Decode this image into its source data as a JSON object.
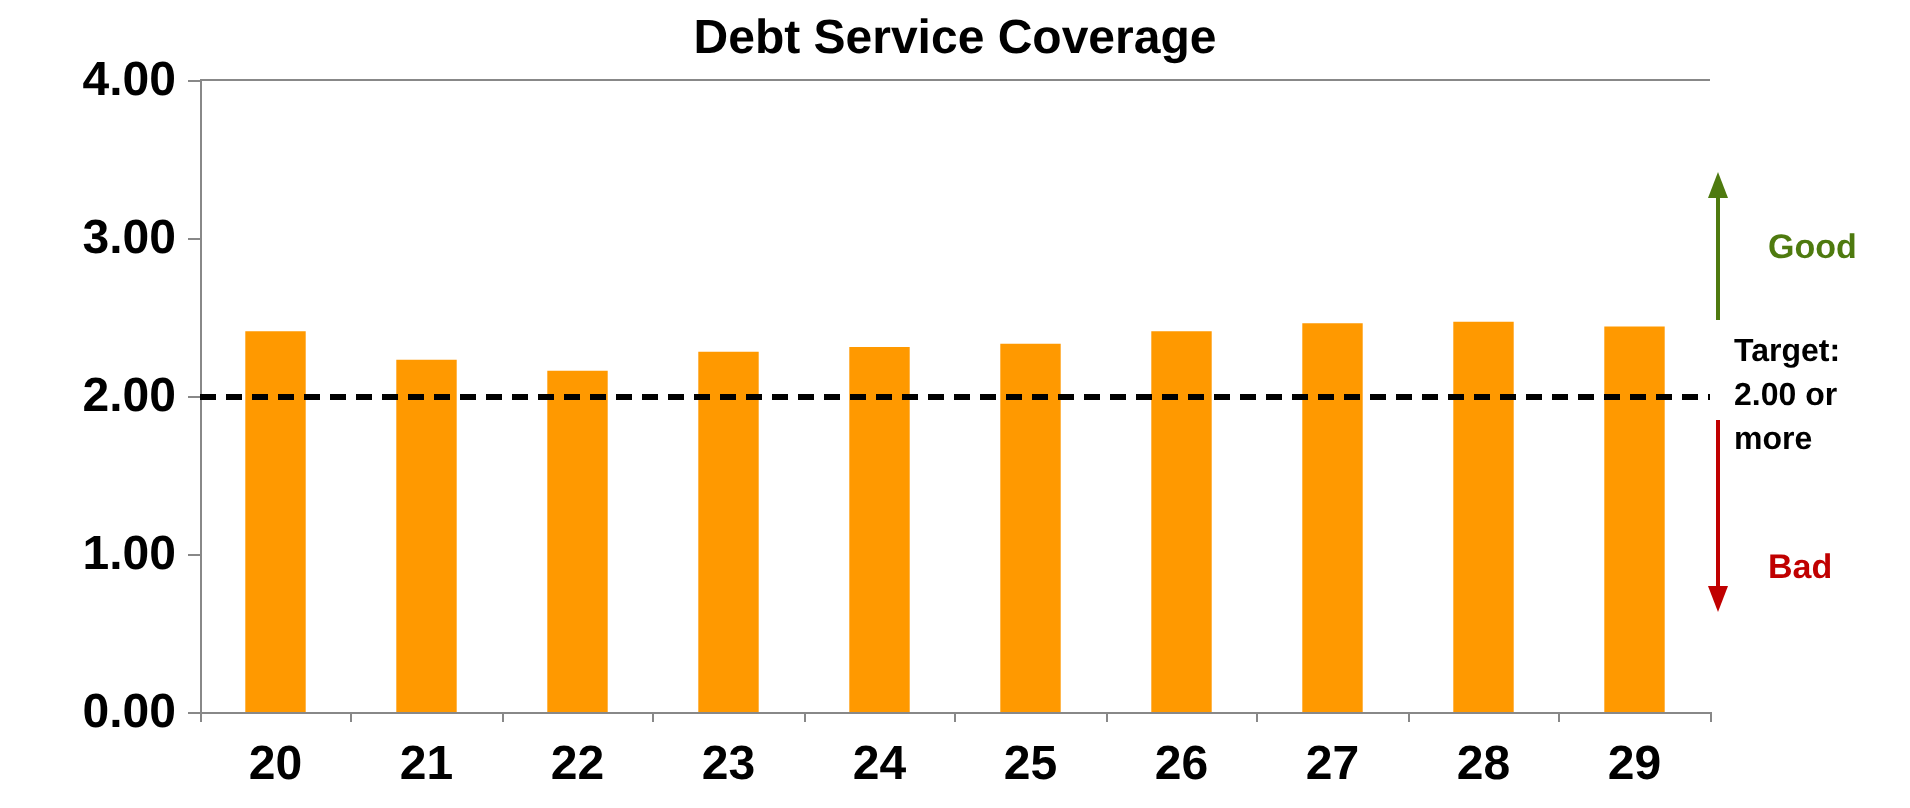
{
  "chart_data": {
    "type": "bar",
    "title": "Debt Service Coverage",
    "categories": [
      "20",
      "21",
      "22",
      "23",
      "24",
      "25",
      "26",
      "27",
      "28",
      "29"
    ],
    "values": [
      2.41,
      2.23,
      2.16,
      2.28,
      2.31,
      2.33,
      2.41,
      2.46,
      2.47,
      2.44
    ],
    "color": "#ff9900",
    "ylim": [
      0,
      4
    ],
    "yticks": [
      {
        "value": 0,
        "label": "0.00"
      },
      {
        "value": 1,
        "label": "1.00"
      },
      {
        "value": 2,
        "label": "2.00"
      },
      {
        "value": 3,
        "label": "3.00"
      },
      {
        "value": 4,
        "label": "4.00"
      }
    ],
    "grid": false,
    "ref_lines": [
      {
        "axis": "y",
        "value": 2,
        "label": "Target: 2.00 or more",
        "color": "#000000",
        "line_style": "dashed"
      }
    ],
    "annotations": [
      "Good",
      "Bad"
    ]
  }
}
